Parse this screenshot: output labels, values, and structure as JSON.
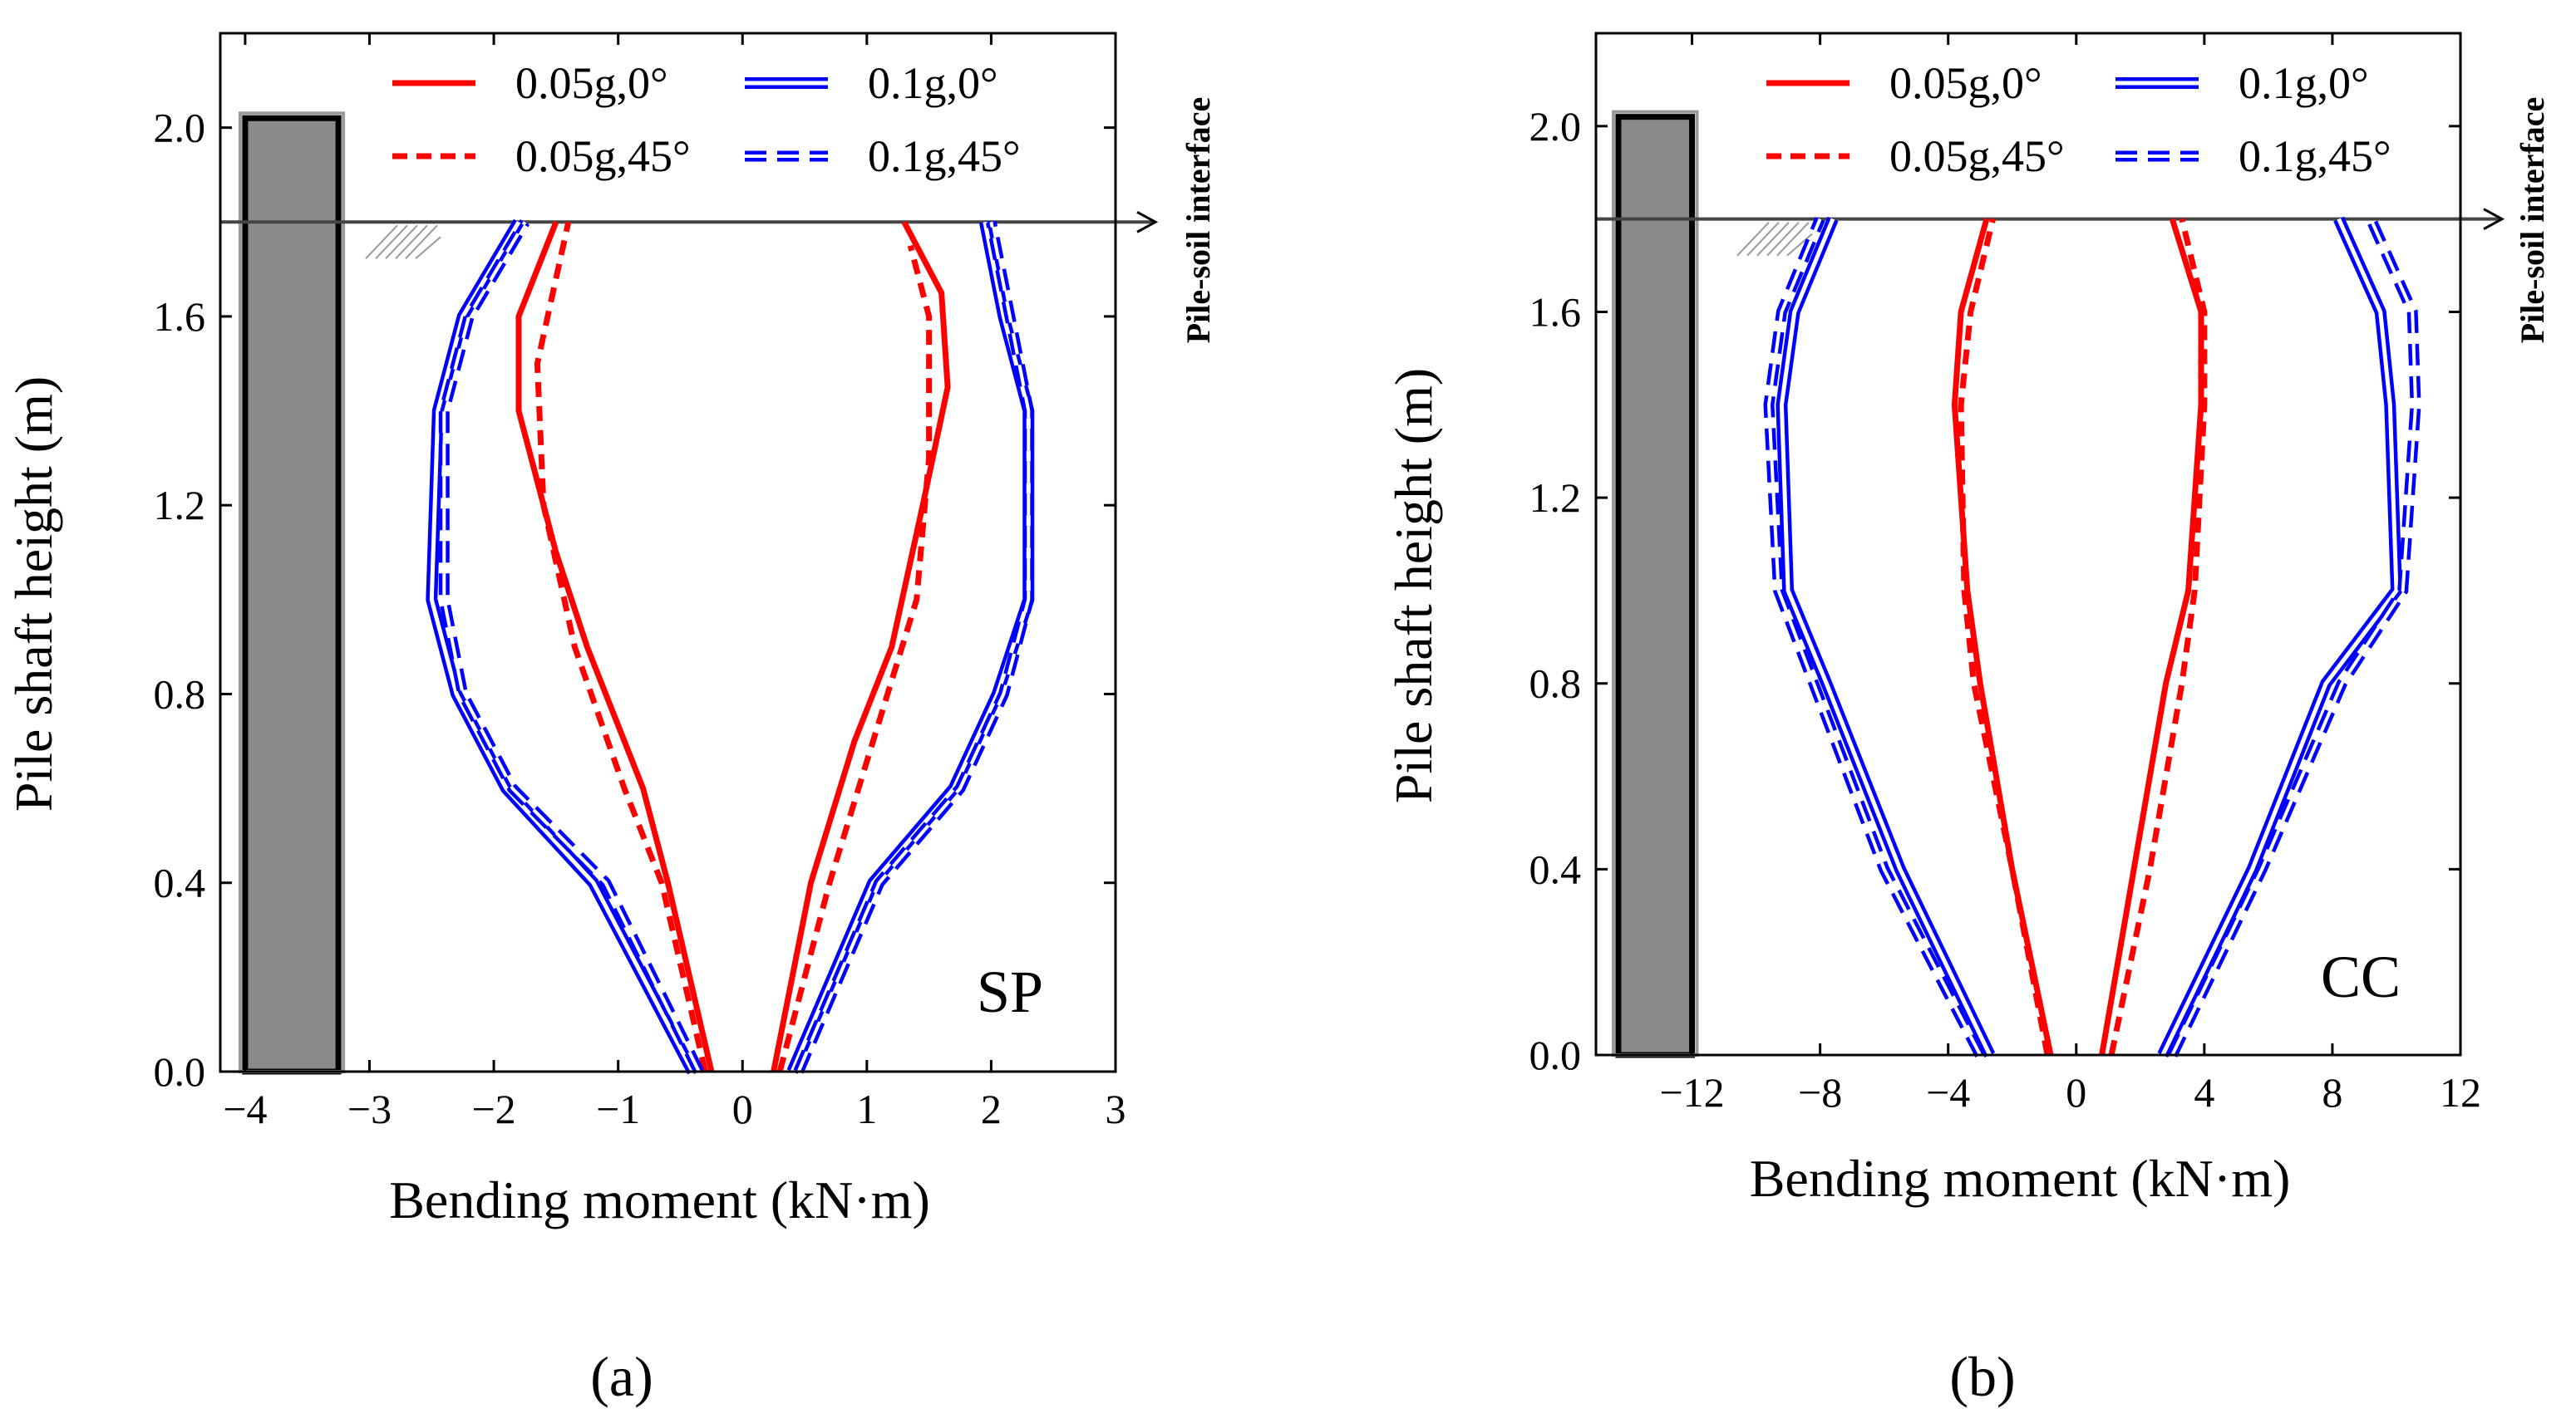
{
  "chart_data": [
    {
      "type": "line",
      "panel_label": "(a)",
      "annotation": "SP",
      "xlabel": "Bending moment (kN·m)",
      "ylabel": "Pile shaft height (m)",
      "xlim": [
        -4.2,
        3
      ],
      "ylim": [
        0,
        2.2
      ],
      "xticks": [
        -4,
        -3,
        -2,
        -1,
        0,
        1,
        2,
        3
      ],
      "yticks": [
        0.0,
        0.4,
        0.8,
        1.2,
        1.6,
        2.0
      ],
      "grid": false,
      "legend_position": "top",
      "interface_label": "Pile-soil interface",
      "interface_height": 1.8,
      "pile": {
        "x_range": [
          -4,
          -3.25
        ],
        "height": 2.02
      },
      "series": [
        {
          "name": "0.05g,0°",
          "color": "#ff0000",
          "style": "solid",
          "side": "left",
          "points": [
            [
              -0.25,
              0
            ],
            [
              -0.6,
              0.4
            ],
            [
              -0.8,
              0.6
            ],
            [
              -1.25,
              0.9
            ],
            [
              -1.5,
              1.1
            ],
            [
              -1.8,
              1.4
            ],
            [
              -1.8,
              1.6
            ],
            [
              -1.5,
              1.8
            ]
          ]
        },
        {
          "name": "0.05g,0°",
          "color": "#ff0000",
          "style": "solid",
          "side": "right",
          "points": [
            [
              0.25,
              0
            ],
            [
              0.55,
              0.4
            ],
            [
              0.9,
              0.7
            ],
            [
              1.2,
              0.9
            ],
            [
              1.45,
              1.2
            ],
            [
              1.65,
              1.45
            ],
            [
              1.6,
              1.65
            ],
            [
              1.3,
              1.8
            ]
          ]
        },
        {
          "name": "0.05g,45°",
          "color": "#ff0000",
          "style": "dashed",
          "side": "left",
          "points": [
            [
              -0.3,
              0
            ],
            [
              -0.65,
              0.4
            ],
            [
              -0.95,
              0.6
            ],
            [
              -1.35,
              0.9
            ],
            [
              -1.6,
              1.2
            ],
            [
              -1.65,
              1.5
            ],
            [
              -1.4,
              1.8
            ]
          ]
        },
        {
          "name": "0.05g,45°",
          "color": "#ff0000",
          "style": "dashed",
          "side": "right",
          "points": [
            [
              0.3,
              0
            ],
            [
              0.7,
              0.4
            ],
            [
              1.05,
              0.7
            ],
            [
              1.4,
              1.0
            ],
            [
              1.5,
              1.3
            ],
            [
              1.5,
              1.6
            ],
            [
              1.35,
              1.75
            ]
          ]
        },
        {
          "name": "0.1g,0°",
          "color": "#0000ff",
          "style": "double",
          "side": "left",
          "points": [
            [
              -0.4,
              0
            ],
            [
              -1.2,
              0.4
            ],
            [
              -1.9,
              0.6
            ],
            [
              -2.3,
              0.8
            ],
            [
              -2.5,
              1.0
            ],
            [
              -2.45,
              1.4
            ],
            [
              -2.25,
              1.6
            ],
            [
              -1.8,
              1.8
            ]
          ]
        },
        {
          "name": "0.1g,0°",
          "color": "#0000ff",
          "style": "double",
          "side": "right",
          "points": [
            [
              0.4,
              0
            ],
            [
              1.05,
              0.4
            ],
            [
              1.7,
              0.6
            ],
            [
              2.05,
              0.8
            ],
            [
              2.3,
              1.0
            ],
            [
              2.3,
              1.4
            ],
            [
              2.1,
              1.6
            ],
            [
              1.95,
              1.8
            ]
          ]
        },
        {
          "name": "0.1g,45°",
          "color": "#0000ff",
          "style": "double-dashed",
          "side": "left",
          "points": [
            [
              -0.35,
              0
            ],
            [
              -1.1,
              0.4
            ],
            [
              -1.85,
              0.6
            ],
            [
              -2.25,
              0.8
            ],
            [
              -2.4,
              1.0
            ],
            [
              -2.4,
              1.4
            ],
            [
              -2.2,
              1.6
            ],
            [
              -1.75,
              1.8
            ]
          ]
        },
        {
          "name": "0.1g,45°",
          "color": "#0000ff",
          "style": "double-dashed",
          "side": "right",
          "points": [
            [
              0.45,
              0
            ],
            [
              1.1,
              0.4
            ],
            [
              1.75,
              0.6
            ],
            [
              2.1,
              0.8
            ],
            [
              2.3,
              1.0
            ],
            [
              2.3,
              1.4
            ],
            [
              2.15,
              1.6
            ],
            [
              2.0,
              1.8
            ]
          ]
        }
      ]
    },
    {
      "type": "line",
      "panel_label": "(b)",
      "annotation": "CC",
      "xlabel": "Bending moment (kN·m)",
      "ylabel": "Pile shaft height (m)",
      "xlim": [
        -15,
        12
      ],
      "ylim": [
        0,
        2.2
      ],
      "xticks": [
        -12,
        -8,
        -4,
        0,
        4,
        8,
        12
      ],
      "yticks": [
        0.0,
        0.4,
        0.8,
        1.2,
        1.6,
        2.0
      ],
      "grid": false,
      "legend_position": "top",
      "interface_label": "Pile-soil interface",
      "interface_height": 1.8,
      "pile": {
        "x_range": [
          -14.3,
          -12.0
        ],
        "height": 2.02
      },
      "series": [
        {
          "name": "0.05g,0°",
          "color": "#ff0000",
          "style": "solid",
          "side": "left",
          "points": [
            [
              -0.8,
              0
            ],
            [
              -2,
              0.4
            ],
            [
              -3,
              0.8
            ],
            [
              -3.4,
              1.0
            ],
            [
              -3.8,
              1.4
            ],
            [
              -3.6,
              1.6
            ],
            [
              -2.8,
              1.8
            ]
          ]
        },
        {
          "name": "0.05g,0°",
          "color": "#ff0000",
          "style": "solid",
          "side": "right",
          "points": [
            [
              0.8,
              0
            ],
            [
              1.8,
              0.4
            ],
            [
              2.8,
              0.8
            ],
            [
              3.5,
              1.0
            ],
            [
              3.9,
              1.4
            ],
            [
              3.9,
              1.6
            ],
            [
              3.0,
              1.8
            ]
          ]
        },
        {
          "name": "0.05g,45°",
          "color": "#ff0000",
          "style": "dashed",
          "side": "left",
          "points": [
            [
              -0.9,
              0
            ],
            [
              -2,
              0.4
            ],
            [
              -3.2,
              0.8
            ],
            [
              -3.5,
              1.0
            ],
            [
              -3.6,
              1.4
            ],
            [
              -3.3,
              1.6
            ],
            [
              -2.6,
              1.8
            ]
          ]
        },
        {
          "name": "0.05g,45°",
          "color": "#ff0000",
          "style": "dashed",
          "side": "right",
          "points": [
            [
              1.1,
              0
            ],
            [
              2.3,
              0.4
            ],
            [
              3.3,
              0.8
            ],
            [
              3.7,
              1.0
            ],
            [
              4.0,
              1.4
            ],
            [
              4.0,
              1.6
            ],
            [
              3.3,
              1.8
            ]
          ]
        },
        {
          "name": "0.1g,0°",
          "color": "#0000ff",
          "style": "double",
          "side": "left",
          "points": [
            [
              -2.7,
              0
            ],
            [
              -5.5,
              0.4
            ],
            [
              -7.8,
              0.8
            ],
            [
              -9,
              1.0
            ],
            [
              -9.2,
              1.4
            ],
            [
              -8.8,
              1.6
            ],
            [
              -7.6,
              1.8
            ]
          ]
        },
        {
          "name": "0.1g,0°",
          "color": "#0000ff",
          "style": "double",
          "side": "right",
          "points": [
            [
              2.7,
              0
            ],
            [
              5.5,
              0.4
            ],
            [
              7.8,
              0.8
            ],
            [
              10,
              1.0
            ],
            [
              9.8,
              1.4
            ],
            [
              9.5,
              1.6
            ],
            [
              8.2,
              1.8
            ]
          ]
        },
        {
          "name": "0.1g,45°",
          "color": "#0000ff",
          "style": "double-dashed",
          "side": "left",
          "points": [
            [
              -3.0,
              0
            ],
            [
              -6,
              0.4
            ],
            [
              -8.2,
              0.8
            ],
            [
              -9.3,
              1.0
            ],
            [
              -9.6,
              1.4
            ],
            [
              -9.2,
              1.6
            ],
            [
              -8.0,
              1.8
            ]
          ]
        },
        {
          "name": "0.1g,45°",
          "color": "#0000ff",
          "style": "double-dashed",
          "side": "right",
          "points": [
            [
              3.0,
              0
            ],
            [
              5.8,
              0.4
            ],
            [
              8.3,
              0.8
            ],
            [
              10.2,
              1.0
            ],
            [
              10.6,
              1.4
            ],
            [
              10.5,
              1.6
            ],
            [
              9.2,
              1.8
            ]
          ]
        }
      ]
    }
  ]
}
